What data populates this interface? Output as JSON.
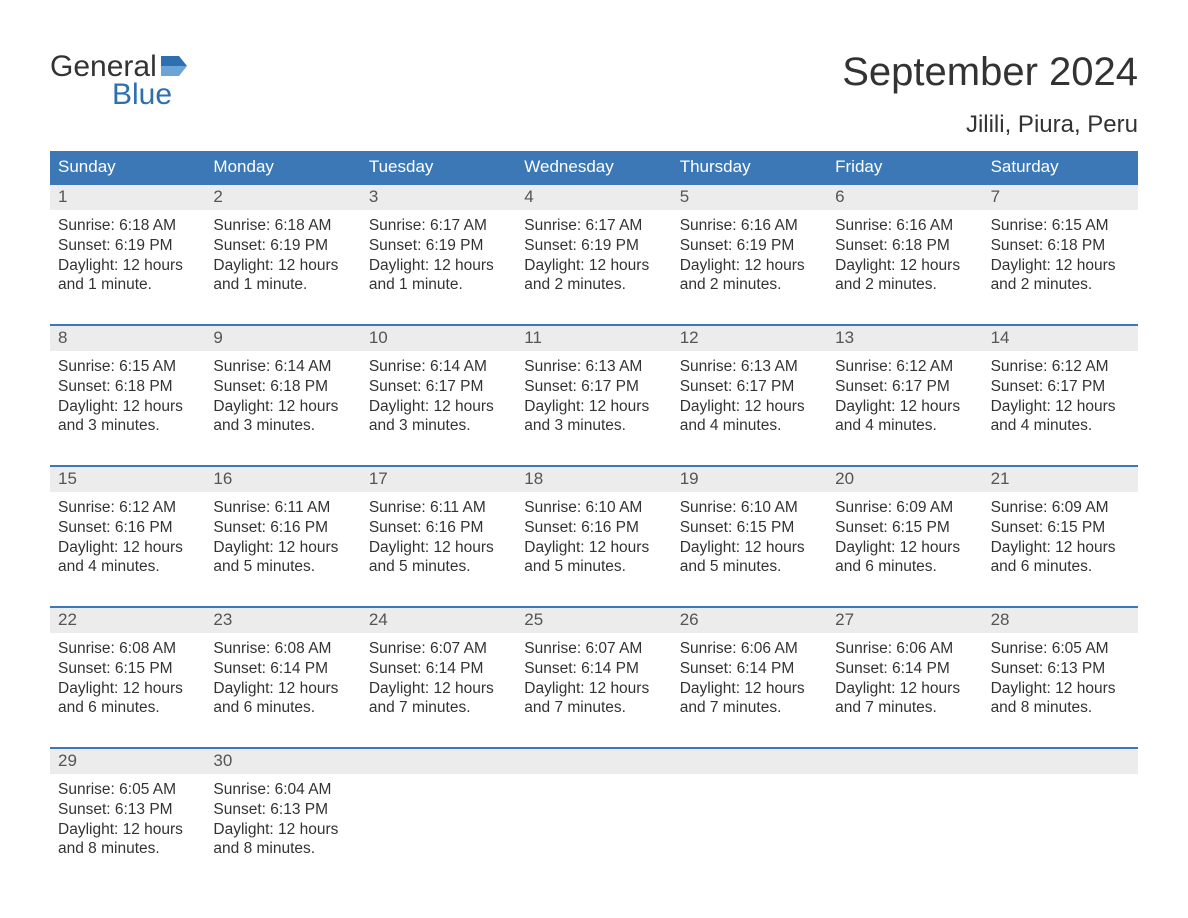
{
  "branding": {
    "logo_word_1": "General",
    "logo_word_2": "Blue",
    "logo_color_dark": "#333333",
    "logo_color_blue": "#2f6fb0"
  },
  "header": {
    "month_title": "September 2024",
    "location": "Jilili, Piura, Peru"
  },
  "calendar": {
    "header_bg": "#3b78b5",
    "header_text_color": "#ffffff",
    "week_divider_color": "#3b78b5",
    "daynum_bg": "#ececec",
    "text_color": "#333333",
    "weekdays": [
      "Sunday",
      "Monday",
      "Tuesday",
      "Wednesday",
      "Thursday",
      "Friday",
      "Saturday"
    ],
    "weeks": [
      {
        "days": [
          {
            "num": "1",
            "sunrise": "Sunrise: 6:18 AM",
            "sunset": "Sunset: 6:19 PM",
            "daylight1": "Daylight: 12 hours",
            "daylight2": "and 1 minute."
          },
          {
            "num": "2",
            "sunrise": "Sunrise: 6:18 AM",
            "sunset": "Sunset: 6:19 PM",
            "daylight1": "Daylight: 12 hours",
            "daylight2": "and 1 minute."
          },
          {
            "num": "3",
            "sunrise": "Sunrise: 6:17 AM",
            "sunset": "Sunset: 6:19 PM",
            "daylight1": "Daylight: 12 hours",
            "daylight2": "and 1 minute."
          },
          {
            "num": "4",
            "sunrise": "Sunrise: 6:17 AM",
            "sunset": "Sunset: 6:19 PM",
            "daylight1": "Daylight: 12 hours",
            "daylight2": "and 2 minutes."
          },
          {
            "num": "5",
            "sunrise": "Sunrise: 6:16 AM",
            "sunset": "Sunset: 6:19 PM",
            "daylight1": "Daylight: 12 hours",
            "daylight2": "and 2 minutes."
          },
          {
            "num": "6",
            "sunrise": "Sunrise: 6:16 AM",
            "sunset": "Sunset: 6:18 PM",
            "daylight1": "Daylight: 12 hours",
            "daylight2": "and 2 minutes."
          },
          {
            "num": "7",
            "sunrise": "Sunrise: 6:15 AM",
            "sunset": "Sunset: 6:18 PM",
            "daylight1": "Daylight: 12 hours",
            "daylight2": "and 2 minutes."
          }
        ]
      },
      {
        "days": [
          {
            "num": "8",
            "sunrise": "Sunrise: 6:15 AM",
            "sunset": "Sunset: 6:18 PM",
            "daylight1": "Daylight: 12 hours",
            "daylight2": "and 3 minutes."
          },
          {
            "num": "9",
            "sunrise": "Sunrise: 6:14 AM",
            "sunset": "Sunset: 6:18 PM",
            "daylight1": "Daylight: 12 hours",
            "daylight2": "and 3 minutes."
          },
          {
            "num": "10",
            "sunrise": "Sunrise: 6:14 AM",
            "sunset": "Sunset: 6:17 PM",
            "daylight1": "Daylight: 12 hours",
            "daylight2": "and 3 minutes."
          },
          {
            "num": "11",
            "sunrise": "Sunrise: 6:13 AM",
            "sunset": "Sunset: 6:17 PM",
            "daylight1": "Daylight: 12 hours",
            "daylight2": "and 3 minutes."
          },
          {
            "num": "12",
            "sunrise": "Sunrise: 6:13 AM",
            "sunset": "Sunset: 6:17 PM",
            "daylight1": "Daylight: 12 hours",
            "daylight2": "and 4 minutes."
          },
          {
            "num": "13",
            "sunrise": "Sunrise: 6:12 AM",
            "sunset": "Sunset: 6:17 PM",
            "daylight1": "Daylight: 12 hours",
            "daylight2": "and 4 minutes."
          },
          {
            "num": "14",
            "sunrise": "Sunrise: 6:12 AM",
            "sunset": "Sunset: 6:17 PM",
            "daylight1": "Daylight: 12 hours",
            "daylight2": "and 4 minutes."
          }
        ]
      },
      {
        "days": [
          {
            "num": "15",
            "sunrise": "Sunrise: 6:12 AM",
            "sunset": "Sunset: 6:16 PM",
            "daylight1": "Daylight: 12 hours",
            "daylight2": "and 4 minutes."
          },
          {
            "num": "16",
            "sunrise": "Sunrise: 6:11 AM",
            "sunset": "Sunset: 6:16 PM",
            "daylight1": "Daylight: 12 hours",
            "daylight2": "and 5 minutes."
          },
          {
            "num": "17",
            "sunrise": "Sunrise: 6:11 AM",
            "sunset": "Sunset: 6:16 PM",
            "daylight1": "Daylight: 12 hours",
            "daylight2": "and 5 minutes."
          },
          {
            "num": "18",
            "sunrise": "Sunrise: 6:10 AM",
            "sunset": "Sunset: 6:16 PM",
            "daylight1": "Daylight: 12 hours",
            "daylight2": "and 5 minutes."
          },
          {
            "num": "19",
            "sunrise": "Sunrise: 6:10 AM",
            "sunset": "Sunset: 6:15 PM",
            "daylight1": "Daylight: 12 hours",
            "daylight2": "and 5 minutes."
          },
          {
            "num": "20",
            "sunrise": "Sunrise: 6:09 AM",
            "sunset": "Sunset: 6:15 PM",
            "daylight1": "Daylight: 12 hours",
            "daylight2": "and 6 minutes."
          },
          {
            "num": "21",
            "sunrise": "Sunrise: 6:09 AM",
            "sunset": "Sunset: 6:15 PM",
            "daylight1": "Daylight: 12 hours",
            "daylight2": "and 6 minutes."
          }
        ]
      },
      {
        "days": [
          {
            "num": "22",
            "sunrise": "Sunrise: 6:08 AM",
            "sunset": "Sunset: 6:15 PM",
            "daylight1": "Daylight: 12 hours",
            "daylight2": "and 6 minutes."
          },
          {
            "num": "23",
            "sunrise": "Sunrise: 6:08 AM",
            "sunset": "Sunset: 6:14 PM",
            "daylight1": "Daylight: 12 hours",
            "daylight2": "and 6 minutes."
          },
          {
            "num": "24",
            "sunrise": "Sunrise: 6:07 AM",
            "sunset": "Sunset: 6:14 PM",
            "daylight1": "Daylight: 12 hours",
            "daylight2": "and 7 minutes."
          },
          {
            "num": "25",
            "sunrise": "Sunrise: 6:07 AM",
            "sunset": "Sunset: 6:14 PM",
            "daylight1": "Daylight: 12 hours",
            "daylight2": "and 7 minutes."
          },
          {
            "num": "26",
            "sunrise": "Sunrise: 6:06 AM",
            "sunset": "Sunset: 6:14 PM",
            "daylight1": "Daylight: 12 hours",
            "daylight2": "and 7 minutes."
          },
          {
            "num": "27",
            "sunrise": "Sunrise: 6:06 AM",
            "sunset": "Sunset: 6:14 PM",
            "daylight1": "Daylight: 12 hours",
            "daylight2": "and 7 minutes."
          },
          {
            "num": "28",
            "sunrise": "Sunrise: 6:05 AM",
            "sunset": "Sunset: 6:13 PM",
            "daylight1": "Daylight: 12 hours",
            "daylight2": "and 8 minutes."
          }
        ]
      },
      {
        "days": [
          {
            "num": "29",
            "sunrise": "Sunrise: 6:05 AM",
            "sunset": "Sunset: 6:13 PM",
            "daylight1": "Daylight: 12 hours",
            "daylight2": "and 8 minutes."
          },
          {
            "num": "30",
            "sunrise": "Sunrise: 6:04 AM",
            "sunset": "Sunset: 6:13 PM",
            "daylight1": "Daylight: 12 hours",
            "daylight2": "and 8 minutes."
          },
          {
            "empty": true
          },
          {
            "empty": true
          },
          {
            "empty": true
          },
          {
            "empty": true
          },
          {
            "empty": true
          }
        ]
      }
    ]
  }
}
